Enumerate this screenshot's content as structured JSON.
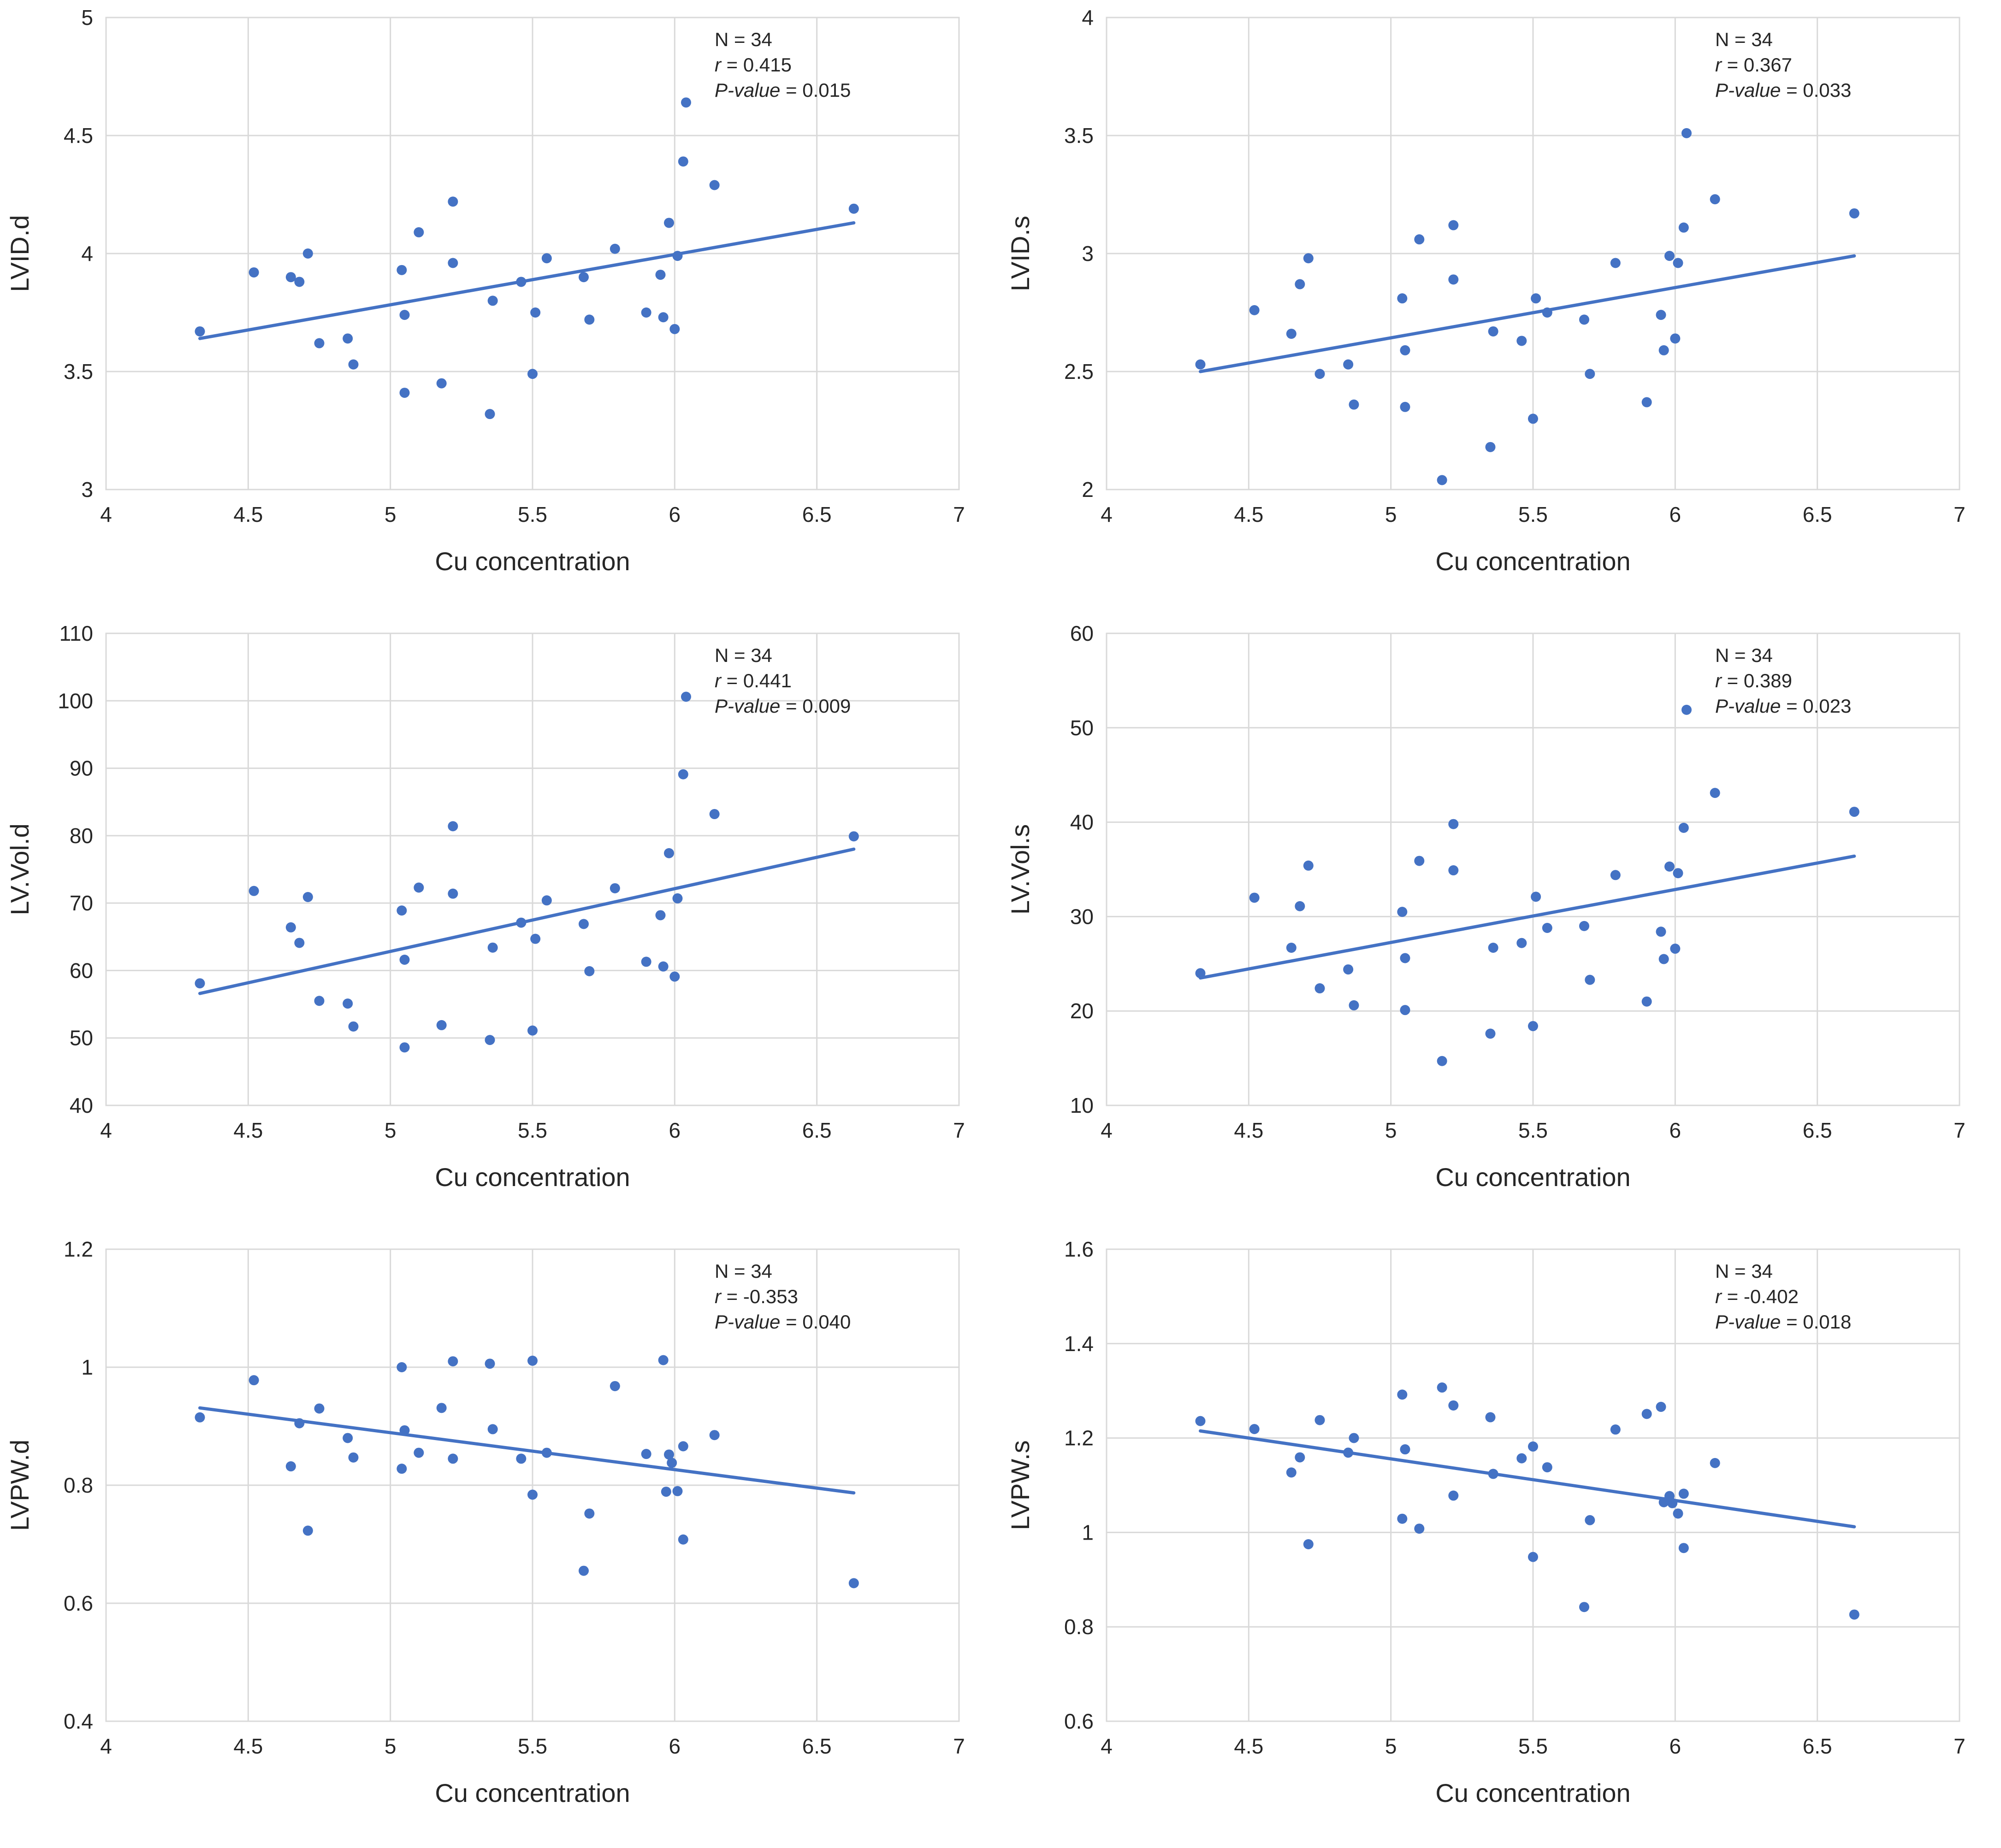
{
  "figure": {
    "point_color": "#4472c4",
    "trend_color": "#4472c4"
  },
  "chart_data": [
    {
      "type": "scatter",
      "title": "",
      "xlabel": "Cu concentration",
      "ylabel": "LVID.d",
      "xlim": [
        4,
        7
      ],
      "ylim": [
        3,
        5
      ],
      "xticks": [
        4,
        4.5,
        5,
        5.5,
        6,
        6.5,
        7
      ],
      "yticks": [
        3,
        3.5,
        4,
        4.5,
        5
      ],
      "xtick_labels": [
        "4",
        "4.5",
        "5",
        "5.5",
        "6",
        "6.5",
        "7"
      ],
      "ytick_labels": [
        "3",
        "3.5",
        "4",
        "4.5",
        "5"
      ],
      "stats": {
        "n": "N = 34",
        "r_symbol": "r",
        "r_value": " = 0.415",
        "p_label": "P-value",
        "p_value": " = 0.015"
      },
      "trendline": {
        "x": [
          4.33,
          6.63
        ],
        "y": [
          3.64,
          4.13
        ]
      },
      "points": [
        [
          4.33,
          3.67
        ],
        [
          4.52,
          3.92
        ],
        [
          4.65,
          3.9
        ],
        [
          4.68,
          3.88
        ],
        [
          4.71,
          4.0
        ],
        [
          4.75,
          3.62
        ],
        [
          4.85,
          3.64
        ],
        [
          4.87,
          3.53
        ],
        [
          5.04,
          3.93
        ],
        [
          5.05,
          3.41
        ],
        [
          5.05,
          3.74
        ],
        [
          5.1,
          4.09
        ],
        [
          5.18,
          3.45
        ],
        [
          5.22,
          4.22
        ],
        [
          5.22,
          3.96
        ],
        [
          5.35,
          3.32
        ],
        [
          5.36,
          3.8
        ],
        [
          5.46,
          3.88
        ],
        [
          5.5,
          3.49
        ],
        [
          5.51,
          3.75
        ],
        [
          5.55,
          3.98
        ],
        [
          5.68,
          3.9
        ],
        [
          5.7,
          3.72
        ],
        [
          5.79,
          4.02
        ],
        [
          5.9,
          3.75
        ],
        [
          5.95,
          3.91
        ],
        [
          5.96,
          3.73
        ],
        [
          5.98,
          4.13
        ],
        [
          6.0,
          3.68
        ],
        [
          6.01,
          3.99
        ],
        [
          6.03,
          4.39
        ],
        [
          6.04,
          4.64
        ],
        [
          6.14,
          4.29
        ],
        [
          6.63,
          4.19
        ]
      ]
    },
    {
      "type": "scatter",
      "title": "",
      "xlabel": "Cu concentration",
      "ylabel": "LVID.s",
      "xlim": [
        4,
        7
      ],
      "ylim": [
        2,
        4
      ],
      "xticks": [
        4,
        4.5,
        5,
        5.5,
        6,
        6.5,
        7
      ],
      "yticks": [
        2,
        2.5,
        3,
        3.5,
        4
      ],
      "xtick_labels": [
        "4",
        "4.5",
        "5",
        "5.5",
        "6",
        "6.5",
        "7"
      ],
      "ytick_labels": [
        "2",
        "2.5",
        "3",
        "3.5",
        "4"
      ],
      "stats": {
        "n": "N = 34",
        "r_symbol": "r",
        "r_value": " = 0.367",
        "p_label": "P-value",
        "p_value": " = 0.033"
      },
      "trendline": {
        "x": [
          4.33,
          6.63
        ],
        "y": [
          2.5,
          2.99
        ]
      },
      "points": [
        [
          4.33,
          2.53
        ],
        [
          4.52,
          2.76
        ],
        [
          4.65,
          2.66
        ],
        [
          4.68,
          2.87
        ],
        [
          4.71,
          2.98
        ],
        [
          4.75,
          2.49
        ],
        [
          4.85,
          2.53
        ],
        [
          4.87,
          2.36
        ],
        [
          5.04,
          2.81
        ],
        [
          5.05,
          2.35
        ],
        [
          5.05,
          2.59
        ],
        [
          5.1,
          3.06
        ],
        [
          5.18,
          2.04
        ],
        [
          5.22,
          3.12
        ],
        [
          5.22,
          2.89
        ],
        [
          5.35,
          2.18
        ],
        [
          5.36,
          2.67
        ],
        [
          5.46,
          2.63
        ],
        [
          5.5,
          2.3
        ],
        [
          5.51,
          2.81
        ],
        [
          5.55,
          2.75
        ],
        [
          5.68,
          2.72
        ],
        [
          5.7,
          2.49
        ],
        [
          5.79,
          2.96
        ],
        [
          5.9,
          2.37
        ],
        [
          5.95,
          2.74
        ],
        [
          5.96,
          2.59
        ],
        [
          5.98,
          2.99
        ],
        [
          6.0,
          2.64
        ],
        [
          6.01,
          2.96
        ],
        [
          6.03,
          3.11
        ],
        [
          6.04,
          3.51
        ],
        [
          6.14,
          3.23
        ],
        [
          6.63,
          3.17
        ]
      ]
    },
    {
      "type": "scatter",
      "title": "",
      "xlabel": "Cu concentration",
      "ylabel": "LV.Vol.d",
      "xlim": [
        4,
        7
      ],
      "ylim": [
        40,
        110
      ],
      "xticks": [
        4,
        4.5,
        5,
        5.5,
        6,
        6.5,
        7
      ],
      "yticks": [
        40,
        50,
        60,
        70,
        80,
        90,
        100,
        110
      ],
      "xtick_labels": [
        "4",
        "4.5",
        "5",
        "5.5",
        "6",
        "6.5",
        "7"
      ],
      "ytick_labels": [
        "40",
        "50",
        "60",
        "70",
        "80",
        "90",
        "100",
        "110"
      ],
      "stats": {
        "n": "N = 34",
        "r_symbol": "r",
        "r_value": " = 0.441",
        "p_label": "P-value",
        "p_value": " = 0.009"
      },
      "trendline": {
        "x": [
          4.33,
          6.63
        ],
        "y": [
          56.6,
          78.0
        ]
      },
      "points": [
        [
          4.33,
          58.1
        ],
        [
          4.52,
          71.8
        ],
        [
          4.65,
          66.4
        ],
        [
          4.68,
          64.1
        ],
        [
          4.71,
          70.9
        ],
        [
          4.75,
          55.5
        ],
        [
          4.85,
          55.1
        ],
        [
          4.87,
          51.7
        ],
        [
          5.04,
          68.9
        ],
        [
          5.05,
          48.6
        ],
        [
          5.05,
          61.6
        ],
        [
          5.1,
          72.3
        ],
        [
          5.18,
          51.9
        ],
        [
          5.22,
          81.4
        ],
        [
          5.22,
          71.4
        ],
        [
          5.35,
          49.7
        ],
        [
          5.36,
          63.4
        ],
        [
          5.46,
          67.1
        ],
        [
          5.5,
          51.1
        ],
        [
          5.51,
          64.7
        ],
        [
          5.55,
          70.4
        ],
        [
          5.68,
          66.9
        ],
        [
          5.7,
          59.9
        ],
        [
          5.79,
          72.2
        ],
        [
          5.9,
          61.3
        ],
        [
          5.95,
          68.2
        ],
        [
          5.96,
          60.6
        ],
        [
          5.98,
          77.4
        ],
        [
          6.0,
          59.1
        ],
        [
          6.01,
          70.7
        ],
        [
          6.03,
          89.1
        ],
        [
          6.04,
          100.6
        ],
        [
          6.14,
          83.2
        ],
        [
          6.63,
          79.9
        ]
      ]
    },
    {
      "type": "scatter",
      "title": "",
      "xlabel": "Cu concentration",
      "ylabel": "LV.Vol.s",
      "xlim": [
        4,
        7
      ],
      "ylim": [
        10,
        60
      ],
      "xticks": [
        4,
        4.5,
        5,
        5.5,
        6,
        6.5,
        7
      ],
      "yticks": [
        10,
        20,
        30,
        40,
        50,
        60
      ],
      "xtick_labels": [
        "4",
        "4.5",
        "5",
        "5.5",
        "6",
        "6.5",
        "7"
      ],
      "ytick_labels": [
        "10",
        "20",
        "30",
        "40",
        "50",
        "60"
      ],
      "stats": {
        "n": "N = 34",
        "r_symbol": "r",
        "r_value": " = 0.389",
        "p_label": "P-value",
        "p_value": " = 0.023"
      },
      "trendline": {
        "x": [
          4.33,
          6.63
        ],
        "y": [
          23.5,
          36.4
        ]
      },
      "points": [
        [
          4.33,
          24.0
        ],
        [
          4.52,
          32.0
        ],
        [
          4.65,
          26.7
        ],
        [
          4.68,
          31.1
        ],
        [
          4.71,
          35.4
        ],
        [
          4.75,
          22.4
        ],
        [
          4.85,
          24.4
        ],
        [
          4.87,
          20.6
        ],
        [
          5.04,
          30.5
        ],
        [
          5.05,
          20.1
        ],
        [
          5.05,
          25.6
        ],
        [
          5.1,
          35.9
        ],
        [
          5.18,
          14.7
        ],
        [
          5.22,
          39.8
        ],
        [
          5.22,
          34.9
        ],
        [
          5.35,
          17.6
        ],
        [
          5.36,
          26.7
        ],
        [
          5.46,
          27.2
        ],
        [
          5.5,
          18.4
        ],
        [
          5.51,
          32.1
        ],
        [
          5.55,
          28.8
        ],
        [
          5.68,
          29.0
        ],
        [
          5.7,
          23.3
        ],
        [
          5.79,
          34.4
        ],
        [
          5.9,
          21.0
        ],
        [
          5.95,
          28.4
        ],
        [
          5.96,
          25.5
        ],
        [
          5.98,
          35.3
        ],
        [
          6.0,
          26.6
        ],
        [
          6.01,
          34.6
        ],
        [
          6.03,
          39.4
        ],
        [
          6.04,
          51.9
        ],
        [
          6.14,
          43.1
        ],
        [
          6.63,
          41.1
        ]
      ]
    },
    {
      "type": "scatter",
      "title": "",
      "xlabel": "Cu concentration",
      "ylabel": "LVPW.d",
      "xlim": [
        4,
        7
      ],
      "ylim": [
        0.4,
        1.2
      ],
      "xticks": [
        4,
        4.5,
        5,
        5.5,
        6,
        6.5,
        7
      ],
      "yticks": [
        0.4,
        0.6,
        0.8,
        1.0,
        1.2
      ],
      "xtick_labels": [
        "4",
        "4.5",
        "5",
        "5.5",
        "6",
        "6.5",
        "7"
      ],
      "ytick_labels": [
        "0.4",
        "0.6",
        "0.8",
        "1",
        "1.2"
      ],
      "stats": {
        "n": "N = 34",
        "r_symbol": "r",
        "r_value": " = -0.353",
        "p_label": "P-value",
        "p_value": " = 0.040"
      },
      "trendline": {
        "x": [
          4.33,
          6.63
        ],
        "y": [
          0.931,
          0.787
        ]
      },
      "points": [
        [
          4.33,
          0.915
        ],
        [
          4.52,
          0.978
        ],
        [
          4.65,
          0.832
        ],
        [
          4.68,
          0.905
        ],
        [
          4.71,
          0.723
        ],
        [
          4.75,
          0.93
        ],
        [
          4.85,
          0.88
        ],
        [
          4.87,
          0.847
        ],
        [
          5.04,
          0.828
        ],
        [
          5.04,
          1.0
        ],
        [
          5.05,
          0.893
        ],
        [
          5.1,
          0.855
        ],
        [
          5.18,
          0.931
        ],
        [
          5.22,
          1.01
        ],
        [
          5.22,
          0.845
        ],
        [
          5.35,
          1.006
        ],
        [
          5.36,
          0.895
        ],
        [
          5.46,
          0.845
        ],
        [
          5.5,
          1.011
        ],
        [
          5.5,
          0.784
        ],
        [
          5.55,
          0.855
        ],
        [
          5.68,
          0.655
        ],
        [
          5.7,
          0.752
        ],
        [
          5.79,
          0.968
        ],
        [
          5.9,
          0.853
        ],
        [
          5.96,
          1.012
        ],
        [
          5.97,
          0.789
        ],
        [
          5.98,
          0.852
        ],
        [
          5.99,
          0.838
        ],
        [
          6.01,
          0.79
        ],
        [
          6.03,
          0.708
        ],
        [
          6.03,
          0.866
        ],
        [
          6.14,
          0.885
        ],
        [
          6.63,
          0.634
        ]
      ]
    },
    {
      "type": "scatter",
      "title": "",
      "xlabel": "Cu concentration",
      "ylabel": "LVPW.s",
      "xlim": [
        4,
        7
      ],
      "ylim": [
        0.6,
        1.6
      ],
      "xticks": [
        4,
        4.5,
        5,
        5.5,
        6,
        6.5,
        7
      ],
      "yticks": [
        0.6,
        0.8,
        1.0,
        1.2,
        1.4,
        1.6
      ],
      "xtick_labels": [
        "4",
        "4.5",
        "5",
        "5.5",
        "6",
        "6.5",
        "7"
      ],
      "ytick_labels": [
        "0.6",
        "0.8",
        "1",
        "1.2",
        "1.4",
        "1.6"
      ],
      "stats": {
        "n": "N = 34",
        "r_symbol": "r",
        "r_value": " = -0.402",
        "p_label": "P-value",
        "p_value": " = 0.018"
      },
      "trendline": {
        "x": [
          4.33,
          6.63
        ],
        "y": [
          1.215,
          1.012
        ]
      },
      "points": [
        [
          4.33,
          1.236
        ],
        [
          4.52,
          1.219
        ],
        [
          4.65,
          1.127
        ],
        [
          4.68,
          1.159
        ],
        [
          4.71,
          0.975
        ],
        [
          4.75,
          1.238
        ],
        [
          4.85,
          1.169
        ],
        [
          4.87,
          1.2
        ],
        [
          5.04,
          1.029
        ],
        [
          5.04,
          1.292
        ],
        [
          5.05,
          1.176
        ],
        [
          5.1,
          1.008
        ],
        [
          5.18,
          1.307
        ],
        [
          5.22,
          1.269
        ],
        [
          5.22,
          1.078
        ],
        [
          5.35,
          1.244
        ],
        [
          5.36,
          1.124
        ],
        [
          5.46,
          1.157
        ],
        [
          5.5,
          1.182
        ],
        [
          5.5,
          0.948
        ],
        [
          5.55,
          1.138
        ],
        [
          5.68,
          0.842
        ],
        [
          5.7,
          1.026
        ],
        [
          5.79,
          1.218
        ],
        [
          5.9,
          1.251
        ],
        [
          5.95,
          1.266
        ],
        [
          5.96,
          1.064
        ],
        [
          5.98,
          1.077
        ],
        [
          5.99,
          1.062
        ],
        [
          6.01,
          1.04
        ],
        [
          6.03,
          0.967
        ],
        [
          6.03,
          1.082
        ],
        [
          6.14,
          1.147
        ],
        [
          6.63,
          0.826
        ]
      ]
    }
  ]
}
